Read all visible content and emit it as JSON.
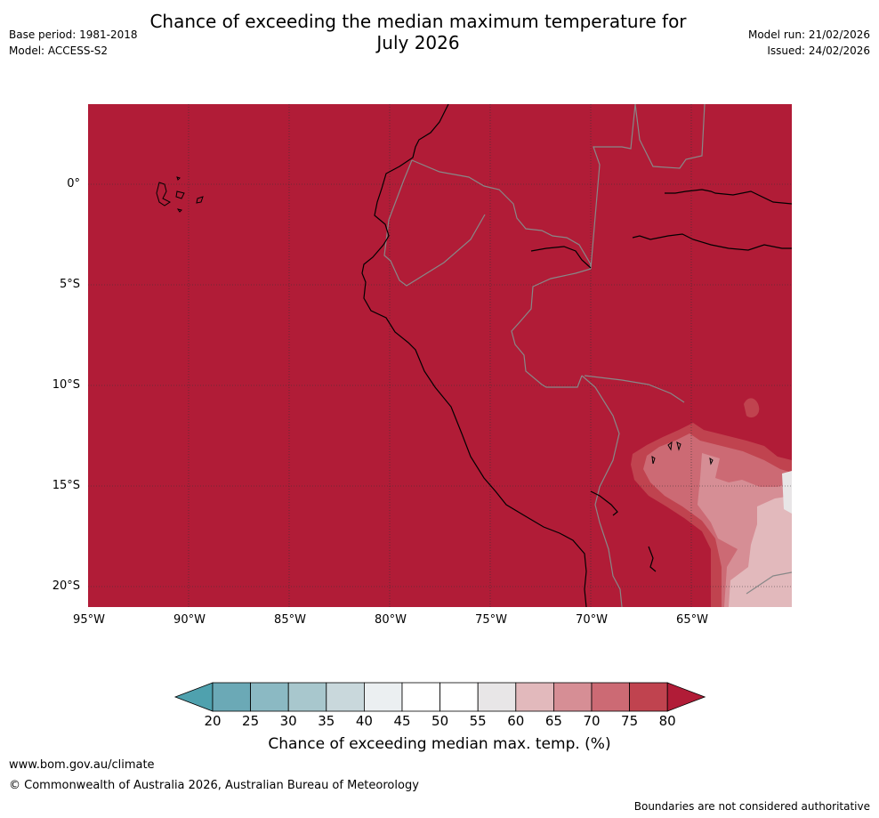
{
  "header": {
    "title_line1": "Chance of exceeding the median maximum temperature for",
    "title_line2": "July 2026",
    "base_period": "Base period: 1981-2018",
    "model": "Model: ACCESS-S2",
    "model_run": "Model run: 21/02/2026",
    "issued": "Issued: 24/02/2026"
  },
  "map": {
    "latitude_labels": [
      "0°",
      "5°S",
      "10°S",
      "15°S",
      "20°S"
    ],
    "longitude_labels": [
      "95°W",
      "90°W",
      "85°W",
      "80°W",
      "75°W",
      "70°W",
      "65°W"
    ],
    "colors": {
      "p80plus": "#b11c37",
      "p75": "#c0434f",
      "p70": "#cc6a74",
      "p65": "#d68e95",
      "p60": "#e2b9bc",
      "coast": "#000000",
      "border": "#808080",
      "grid": "#333333"
    }
  },
  "colorbar": {
    "label": "Chance of exceeding median max. temp. (%)",
    "ticks": [
      "20",
      "25",
      "30",
      "35",
      "40",
      "45",
      "50",
      "55",
      "60",
      "65",
      "70",
      "75",
      "80"
    ],
    "colors": [
      "#4fa1ae",
      "#6ba9b6",
      "#8bb9c3",
      "#a8c7cd",
      "#c9d8dc",
      "#ebeff1",
      "#ffffff",
      "#ffffff",
      "#e8e6e7",
      "#e2b9bc",
      "#d68e95",
      "#cc6a74",
      "#c0434f",
      "#b11c37"
    ]
  },
  "footer": {
    "website": "www.bom.gov.au/climate",
    "copyright": "© Commonwealth of Australia 2026, Australian Bureau of Meteorology",
    "disclaimer": "Boundaries are not considered authoritative"
  }
}
